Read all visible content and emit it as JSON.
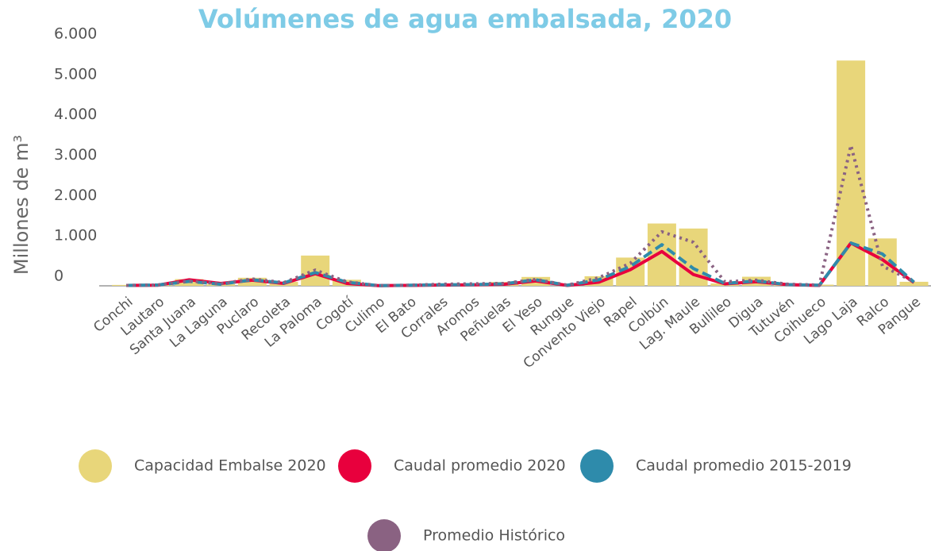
{
  "chart_data": {
    "type": "bar_line",
    "title": "Volúmenes de agua embalsada, 2020",
    "y_label": "Millones de m³",
    "categories": [
      "Conchi",
      "Lautaro",
      "Santa Juana",
      "La Laguna",
      "Puclaro",
      "Recoleta",
      "La Paloma",
      "Cogotí",
      "Culimo",
      "El Bato",
      "Corrales",
      "Aromos",
      "Peñuelas",
      "El Yeso",
      "Rungue",
      "Convento Viejo",
      "Rapel",
      "Colbún",
      "Lag. Maule",
      "Bullileo",
      "Digua",
      "Tutuvén",
      "Coihueco",
      "Lago Laja",
      "Ralco",
      "Pangue"
    ],
    "ylim": [
      0,
      6000
    ],
    "yticks": [
      0,
      {
        "value": 1000,
        "label": "1.000"
      },
      {
        "value": 2000,
        "label": "2.000"
      },
      {
        "value": 3000,
        "label": "3.000"
      },
      {
        "value": 4000,
        "label": "4.000"
      },
      {
        "value": 5000,
        "label": "5.000"
      },
      {
        "value": 6000,
        "label": "6.000"
      }
    ],
    "series": [
      {
        "name": "Capacidad Embalse 2020",
        "type": "bar",
        "color": "#e8d67a",
        "values": [
          22,
          26,
          166,
          40,
          200,
          100,
          750,
          150,
          10,
          25,
          50,
          35,
          95,
          220,
          2,
          237,
          700,
          1544,
          1420,
          60,
          225,
          15,
          29,
          5582,
          1174,
          100
        ]
      },
      {
        "name": "Caudal promedio 2020",
        "type": "line",
        "line_style": "solid",
        "color": "#e8003d",
        "values": [
          10,
          15,
          150,
          60,
          140,
          60,
          300,
          60,
          5,
          10,
          20,
          25,
          40,
          120,
          10,
          90,
          400,
          850,
          280,
          50,
          100,
          30,
          10,
          1060,
          650,
          80
        ]
      },
      {
        "name": "Caudal promedio 2015-2019",
        "type": "line",
        "line_style": "dashed",
        "color": "#2e8bab",
        "values": [
          10,
          20,
          110,
          40,
          150,
          70,
          330,
          90,
          5,
          15,
          25,
          30,
          50,
          150,
          15,
          150,
          480,
          1020,
          430,
          60,
          120,
          30,
          15,
          1060,
          790,
          90
        ]
      },
      {
        "name": "Promedio Histórico",
        "type": "line",
        "line_style": "dotted",
        "color": "#8a6282",
        "values": [
          10,
          20,
          120,
          50,
          170,
          80,
          390,
          100,
          5,
          15,
          40,
          50,
          60,
          160,
          15,
          200,
          560,
          1340,
          1080,
          100,
          140,
          40,
          20,
          3480,
          490,
          100
        ]
      }
    ]
  }
}
